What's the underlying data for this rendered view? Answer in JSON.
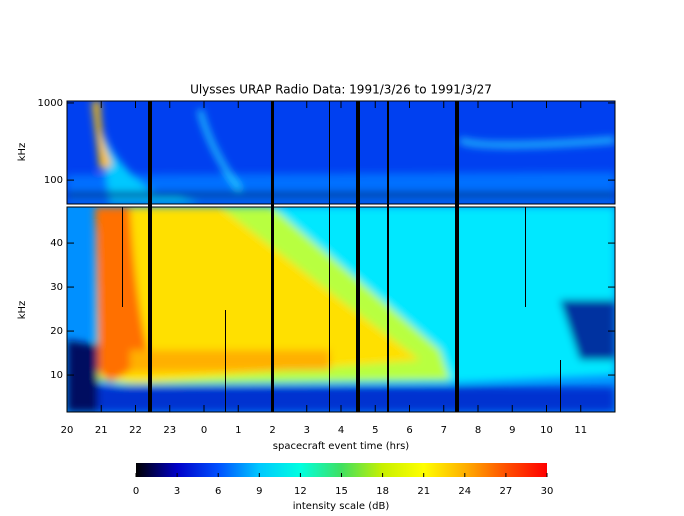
{
  "chart_data": [
    {
      "type": "spectrogram",
      "title": "Ulysses URAP Radio Data: 1991/3/26 to 1991/3/27",
      "ylabel": "kHz",
      "log_y": true,
      "ylim": [
        49,
        1060
      ],
      "yticks": [
        100,
        1000
      ],
      "xlim": [
        20,
        36
      ]
    },
    {
      "type": "spectrogram",
      "ylabel": "kHz",
      "xlabel": "spacecraft event time (hrs)",
      "ylim": [
        1.6,
        48.2
      ],
      "yticks": [
        10,
        20,
        30,
        40
      ],
      "xlim": [
        20,
        36
      ],
      "xticks": [
        20,
        21,
        22,
        23,
        {
          "value": 24,
          "label": "0"
        },
        {
          "value": 25,
          "label": "1"
        },
        {
          "value": 26,
          "label": "2"
        },
        {
          "value": 27,
          "label": "3"
        },
        {
          "value": 28,
          "label": "4"
        },
        {
          "value": 29,
          "label": "5"
        },
        {
          "value": 30,
          "label": "6"
        },
        {
          "value": 31,
          "label": "7"
        },
        {
          "value": 32,
          "label": "8"
        },
        {
          "value": 33,
          "label": "9"
        },
        {
          "value": 34,
          "label": "10"
        },
        {
          "value": 35,
          "label": "11"
        }
      ]
    },
    {
      "type": "colorbar",
      "xlabel": "intensity scale (dB)",
      "xlim": [
        0,
        30
      ],
      "xticks": [
        0,
        3,
        6,
        9,
        12,
        15,
        18,
        21,
        24,
        27,
        30
      ],
      "colormap": [
        "#000000",
        "#0000c8",
        "#0050ff",
        "#00c8ff",
        "#00ffe0",
        "#40e060",
        "#c8f000",
        "#ffff00",
        "#ffb000",
        "#ff5000",
        "#ff0000"
      ]
    }
  ]
}
